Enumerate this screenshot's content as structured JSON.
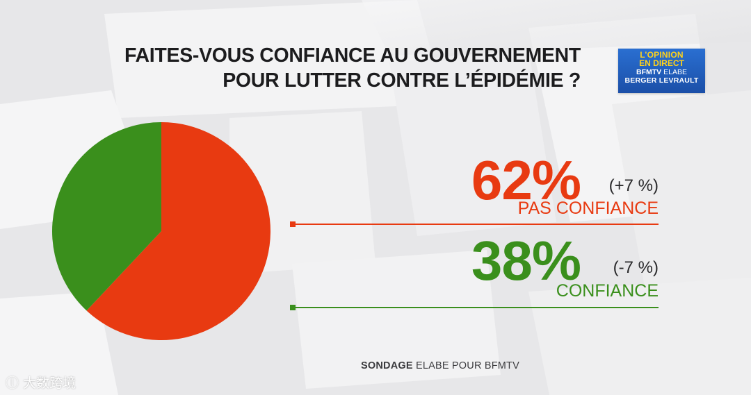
{
  "title_lines": [
    "FAITES-VOUS CONFIANCE AU GOUVERNEMENT",
    "POUR LUTTER CONTRE L’ÉPIDÉMIE ?"
  ],
  "logo": {
    "line1": "L’OPINION",
    "line2": "EN DIRECT",
    "line3_brand": "BFMTV",
    "line3_partner": "ELABE",
    "line4": "BERGER LEVRAULT"
  },
  "results": [
    {
      "value_text": "62%",
      "delta": "(+7 %)",
      "label": "PAS CONFIANCE"
    },
    {
      "value_text": "38%",
      "delta": "(-7 %)",
      "label": "CONFIANCE"
    }
  ],
  "source": {
    "bold": "SONDAGE",
    "rest": "ELABE POUR BFMTV"
  },
  "watermark": "大数跨境",
  "colors": {
    "pas_confiance": "#e83a11",
    "confiance": "#3a8f1c",
    "logo_blue": "#2a6fd1",
    "logo_yellow": "#ffd21a"
  },
  "chart_data": {
    "type": "pie",
    "title": "FAITES-VOUS CONFIANCE AU GOUVERNEMENT POUR LUTTER CONTRE L’ÉPIDÉMIE ?",
    "categories": [
      "PAS CONFIANCE",
      "CONFIANCE"
    ],
    "values": [
      62,
      38
    ],
    "unit": "%",
    "changes": [
      7,
      -7
    ],
    "start_at": "top",
    "direction": "clockwise",
    "colors": [
      "#e83a11",
      "#3a8f1c"
    ]
  }
}
